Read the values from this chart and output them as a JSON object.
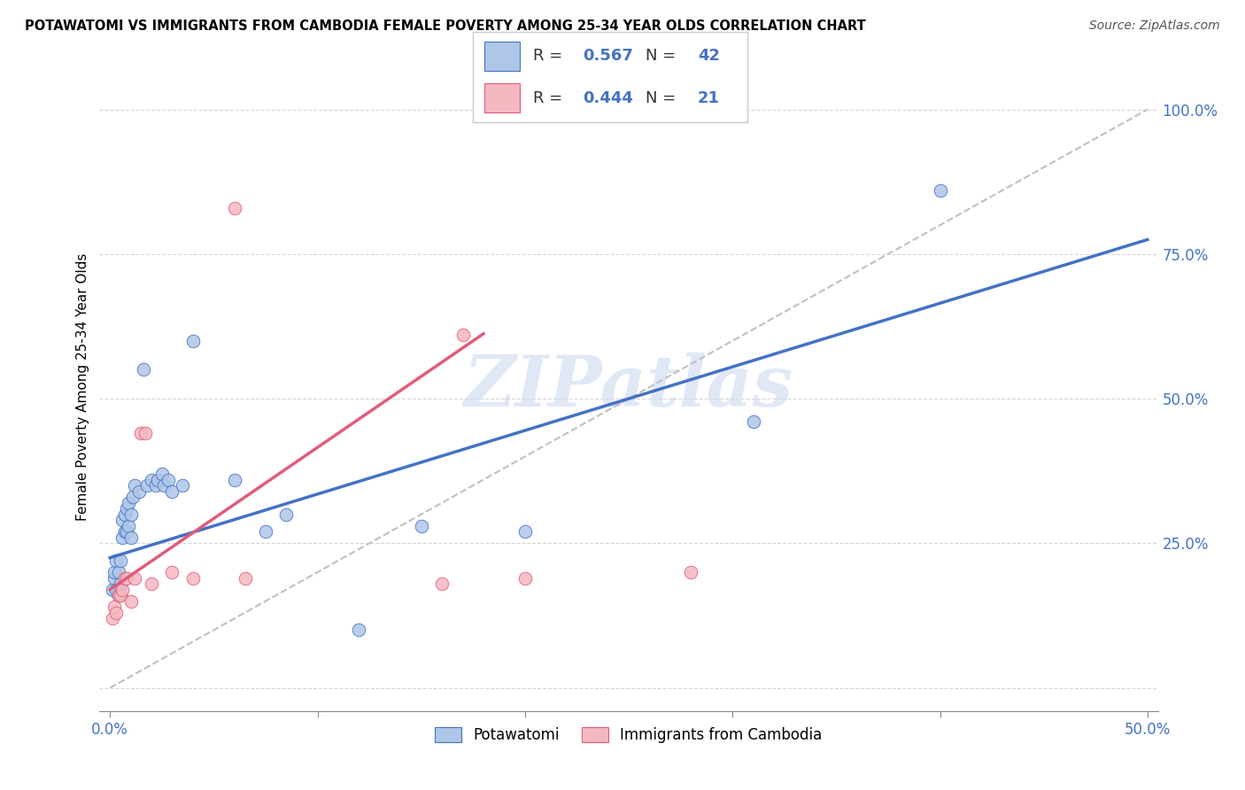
{
  "title": "POTAWATOMI VS IMMIGRANTS FROM CAMBODIA FEMALE POVERTY AMONG 25-34 YEAR OLDS CORRELATION CHART",
  "source": "Source: ZipAtlas.com",
  "ylabel": "Female Poverty Among 25-34 Year Olds",
  "xlim": [
    -0.005,
    0.505
  ],
  "ylim": [
    -0.04,
    1.08
  ],
  "xticks": [
    0.0,
    0.1,
    0.2,
    0.3,
    0.4,
    0.5
  ],
  "xticklabels": [
    "0.0%",
    "",
    "",
    "",
    "",
    "50.0%"
  ],
  "yticks": [
    0.0,
    0.25,
    0.5,
    0.75,
    1.0
  ],
  "yticklabels": [
    "",
    "25.0%",
    "50.0%",
    "75.0%",
    "100.0%"
  ],
  "legend1_color": "#aec6e8",
  "legend2_color": "#f4b8c1",
  "line1_color": "#4472c4",
  "line2_color": "#e05c7a",
  "diag_color": "#c0c0c0",
  "watermark": "ZIPatlas",
  "watermark_color": "#ccd9f0",
  "potawatomi_x": [
    0.001,
    0.002,
    0.002,
    0.003,
    0.003,
    0.004,
    0.004,
    0.005,
    0.005,
    0.005,
    0.006,
    0.006,
    0.007,
    0.007,
    0.008,
    0.008,
    0.009,
    0.009,
    0.01,
    0.01,
    0.011,
    0.012,
    0.014,
    0.016,
    0.018,
    0.02,
    0.022,
    0.023,
    0.025,
    0.026,
    0.028,
    0.03,
    0.035,
    0.04,
    0.06,
    0.075,
    0.085,
    0.12,
    0.15,
    0.2,
    0.31,
    0.4
  ],
  "potawatomi_y": [
    0.17,
    0.19,
    0.2,
    0.17,
    0.22,
    0.16,
    0.2,
    0.18,
    0.22,
    0.16,
    0.26,
    0.29,
    0.27,
    0.3,
    0.27,
    0.31,
    0.28,
    0.32,
    0.26,
    0.3,
    0.33,
    0.35,
    0.34,
    0.55,
    0.35,
    0.36,
    0.35,
    0.36,
    0.37,
    0.35,
    0.36,
    0.34,
    0.35,
    0.6,
    0.36,
    0.27,
    0.3,
    0.1,
    0.28,
    0.27,
    0.46,
    0.86
  ],
  "cambodia_x": [
    0.001,
    0.002,
    0.003,
    0.004,
    0.005,
    0.006,
    0.007,
    0.008,
    0.01,
    0.012,
    0.015,
    0.017,
    0.02,
    0.03,
    0.04,
    0.06,
    0.065,
    0.16,
    0.17,
    0.2,
    0.28
  ],
  "cambodia_y": [
    0.12,
    0.14,
    0.13,
    0.16,
    0.16,
    0.17,
    0.19,
    0.19,
    0.15,
    0.19,
    0.44,
    0.44,
    0.18,
    0.2,
    0.19,
    0.83,
    0.19,
    0.18,
    0.61,
    0.19,
    0.2
  ],
  "blue_line_x": [
    0.0,
    0.5
  ],
  "blue_line_y": [
    0.225,
    0.775
  ],
  "pink_line_x": [
    0.0,
    0.175
  ],
  "pink_line_y": [
    0.17,
    0.6
  ]
}
